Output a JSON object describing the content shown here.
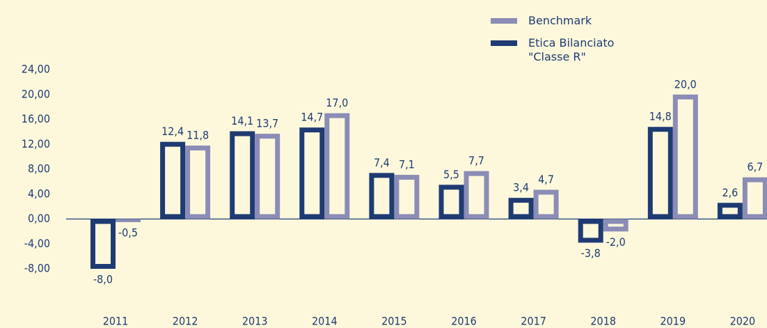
{
  "chart_data": {
    "type": "bar",
    "categories": [
      "2011",
      "2012",
      "2013",
      "2014",
      "2015",
      "2016",
      "2017",
      "2018",
      "2019",
      "2020"
    ],
    "series": [
      {
        "name": "Etica Bilanciato \"Classe R\"",
        "color": "#1f3b73",
        "values": [
          -8.0,
          12.4,
          14.1,
          14.7,
          7.4,
          5.5,
          3.4,
          -3.8,
          14.8,
          2.6
        ],
        "value_labels": [
          "-8,0",
          "12,4",
          "14,1",
          "14,7",
          "7,4",
          "5,5",
          "3,4",
          "-3,8",
          "14,8",
          "2,6"
        ]
      },
      {
        "name": "Benchmark",
        "color": "#8b8db6",
        "values": [
          -0.5,
          11.8,
          13.7,
          17.0,
          7.1,
          7.7,
          4.7,
          -2.0,
          20.0,
          6.7
        ],
        "value_labels": [
          "-0,5",
          "11,8",
          "13,7",
          "17,0",
          "7,1",
          "7,7",
          "4,7",
          "-2,0",
          "20,0",
          "6,7"
        ]
      }
    ],
    "ylim": [
      -8,
      24
    ],
    "yticks": [
      {
        "value": -8,
        "label": "-8,00"
      },
      {
        "value": -4,
        "label": "-4,00"
      },
      {
        "value": 0,
        "label": "0,00"
      },
      {
        "value": 4,
        "label": "4,00"
      },
      {
        "value": 8,
        "label": "8,00"
      },
      {
        "value": 12,
        "label": "12,00"
      },
      {
        "value": 16,
        "label": "16,00"
      },
      {
        "value": 20,
        "label": "20,00"
      },
      {
        "value": 24,
        "label": "24,00"
      }
    ],
    "legend": "top-right"
  }
}
